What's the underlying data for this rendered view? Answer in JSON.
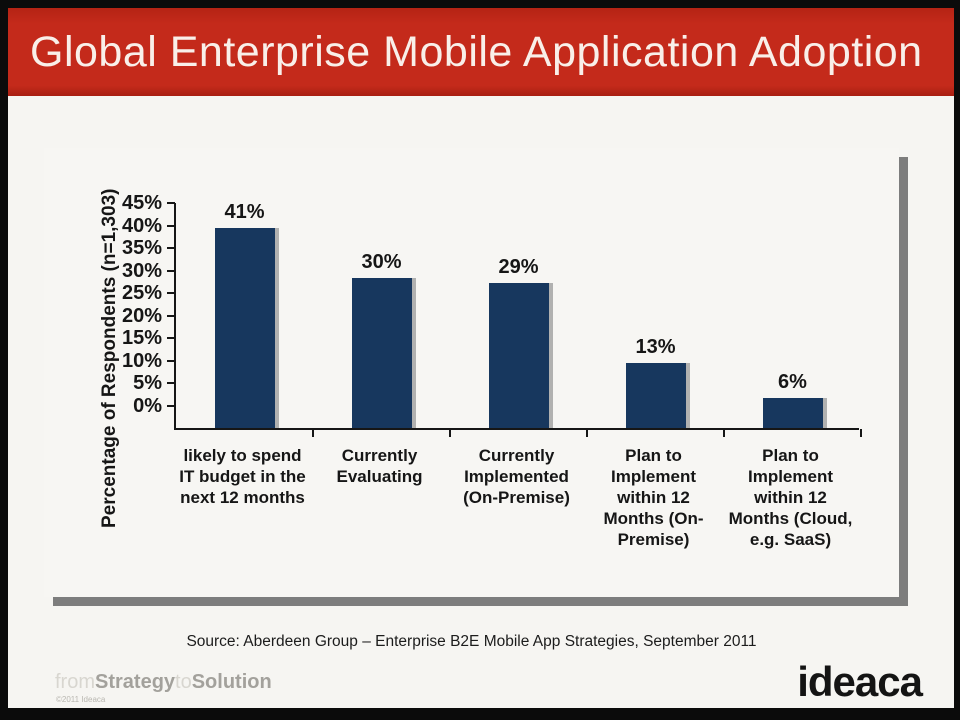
{
  "header": {
    "title": "Global Enterprise Mobile Application Adoption"
  },
  "chart_data": {
    "type": "bar",
    "title": "",
    "categories": [
      "likely to spend IT budget in the next 12 months",
      "Currently Evaluating",
      "Currently Implemented (On-Premise)",
      "Plan to Implement within 12 Months (On-Premise)",
      "Plan to Implement within 12 Months (Cloud, e.g. SaaS)"
    ],
    "categories_wrapped": [
      "likely to spend\nIT budget in the\nnext 12 months",
      "Currently\nEvaluating",
      "Currently\nImplemented\n(On-Premise)",
      "Plan to\nImplement\nwithin 12\nMonths (On-\nPremise)",
      "Plan to\nImplement\nwithin 12\nMonths (Cloud,\ne.g. SaaS)"
    ],
    "values": [
      41,
      30,
      29,
      13,
      6
    ],
    "value_labels": [
      "41%",
      "30%",
      "29%",
      "13%",
      "6%"
    ],
    "xlabel": "",
    "ylabel": "Percentage of Respondents (n=1,303)",
    "ytick_labels": [
      "45%",
      "40%",
      "35%",
      "30%",
      "25%",
      "20%",
      "15%",
      "10%",
      "5%",
      "0%"
    ],
    "ylim": [
      0,
      45
    ],
    "ytick_step": 5,
    "grid": false,
    "legend": false,
    "bar_color": "#17375e"
  },
  "source_line": "Source: Aberdeen Group – Enterprise B2E Mobile App Strategies, September 2011",
  "footer": {
    "tagline": [
      {
        "text": "from",
        "style": "light"
      },
      {
        "text": "Strategy",
        "style": "bold"
      },
      {
        "text": "to",
        "style": "light"
      },
      {
        "text": "Solution",
        "style": "bold"
      }
    ],
    "copyright": "©2011 Ideaca",
    "logo": "ideaca"
  },
  "colors": {
    "banner_red": "#c42a1b",
    "bar_navy": "#17375e",
    "content_bg": "#f6f5f2",
    "panel_shadow": "#7d7d7d",
    "frame_black": "#0b0b0b"
  }
}
